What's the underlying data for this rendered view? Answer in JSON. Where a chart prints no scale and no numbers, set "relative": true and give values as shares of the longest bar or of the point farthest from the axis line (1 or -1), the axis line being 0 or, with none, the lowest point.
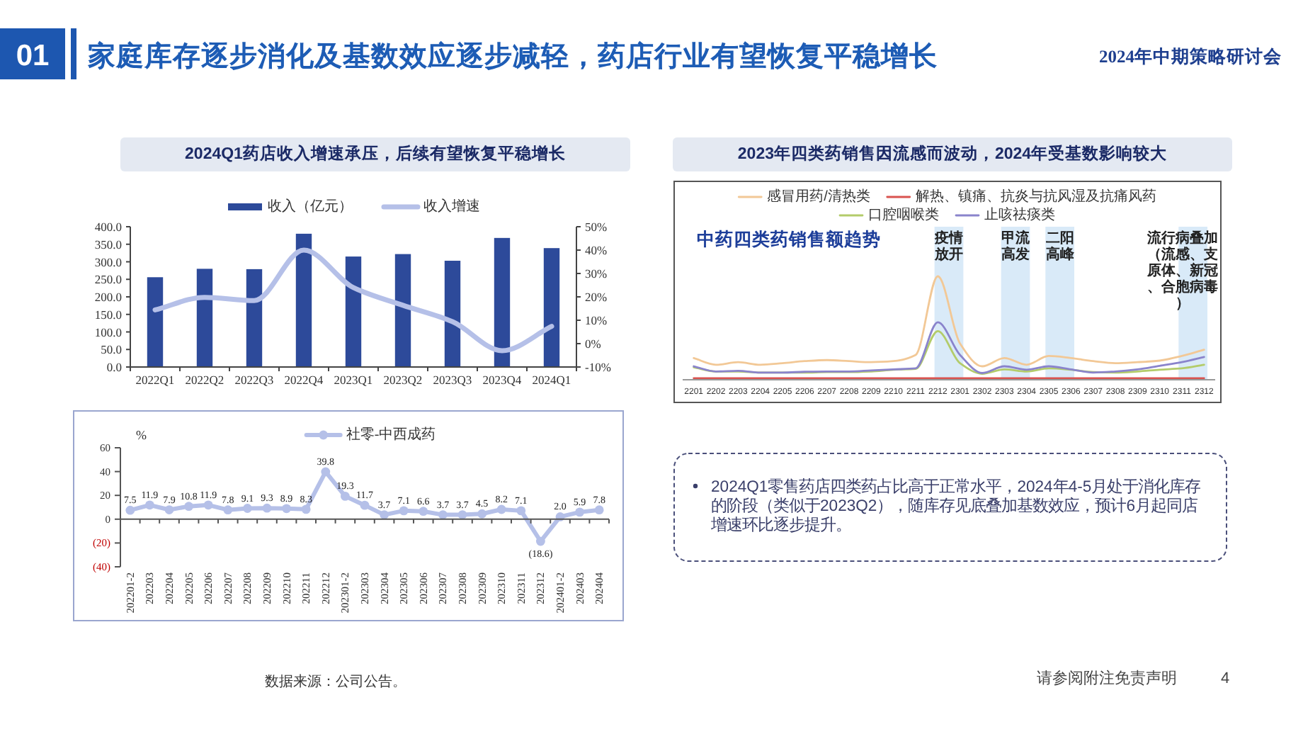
{
  "chart_data": [
    {
      "type": "other",
      "title": "家庭库存逐步消化及基数效应逐步减轻，药店行业有望恢复平稳增长",
      "annotations": [
        "01",
        "2024年中期策略研讨会",
        "数据来源：公司公告。",
        "请参阅附注免责声明",
        "4"
      ]
    },
    {
      "type": "bar",
      "title": "2024Q1药店收入增速承压，后续有望恢复平稳增长",
      "categories": [
        "2022Q1",
        "2022Q2",
        "2022Q3",
        "2022Q4",
        "2023Q1",
        "2023Q2",
        "2023Q3",
        "2023Q4",
        "2024Q1"
      ],
      "series": [
        {
          "name": "收入（亿元）",
          "color": "#2d4a9a",
          "values": [
            256,
            280,
            279,
            380,
            315,
            322,
            303,
            368,
            339
          ]
        },
        {
          "name": "收入增速",
          "type": "line",
          "axis": "y2",
          "color": "#b5c0e8",
          "values": [
            14.4,
            19.8,
            18.4,
            40,
            24,
            16.4,
            9.4,
            -3,
            7.4
          ]
        }
      ],
      "ylim": [
        0,
        400
      ],
      "yticks": [
        {
          "value": 0,
          "label": "0.0"
        },
        {
          "value": 50,
          "label": "50.0"
        },
        {
          "value": 100,
          "label": "100.0"
        },
        {
          "value": 150,
          "label": "150.0"
        },
        {
          "value": 200,
          "label": "200.0"
        },
        {
          "value": 250,
          "label": "250.0"
        },
        {
          "value": 300,
          "label": "300.0"
        },
        {
          "value": 350,
          "label": "350.0"
        },
        {
          "value": 400,
          "label": "400.0"
        }
      ],
      "y2lim": [
        -10,
        50
      ],
      "y2ticks": [
        {
          "value": -10,
          "label": "-10%"
        },
        {
          "value": 0,
          "label": "0%"
        },
        {
          "value": 10,
          "label": "10%"
        },
        {
          "value": 20,
          "label": "20%"
        },
        {
          "value": 30,
          "label": "30%"
        },
        {
          "value": 40,
          "label": "40%"
        },
        {
          "value": 50,
          "label": "50%"
        }
      ],
      "legend": "top"
    },
    {
      "type": "line",
      "title": "2023年四类药销售因流感而波动，2024年受基数影响较大",
      "subtitle": "中药四类药销售额趋势",
      "relative": true,
      "categories": [
        "2201",
        "2202",
        "2203",
        "2204",
        "2205",
        "2206",
        "2207",
        "2208",
        "2209",
        "2210",
        "2211",
        "2212",
        "2301",
        "2302",
        "2303",
        "2304",
        "2305",
        "2306",
        "2307",
        "2308",
        "2309",
        "2310",
        "2311",
        "2312"
      ],
      "series": [
        {
          "name": "感冒用药/清热类",
          "color": "#f2c896",
          "values": [
            0.21,
            0.145,
            0.17,
            0.145,
            0.16,
            0.18,
            0.19,
            0.18,
            0.17,
            0.18,
            0.24,
            1,
            0.35,
            0.13,
            0.21,
            0.145,
            0.23,
            0.21,
            0.18,
            0.16,
            0.17,
            0.185,
            0.23,
            0.29
          ]
        },
        {
          "name": "解热、镇痛、抗炎与抗风湿及抗痛风药",
          "color": "#d9534f",
          "values": [
            0.015,
            0.015,
            0.015,
            0.015,
            0.015,
            0.015,
            0.015,
            0.015,
            0.015,
            0.015,
            0.015,
            0.015,
            0.015,
            0.015,
            0.015,
            0.015,
            0.015,
            0.015,
            0.015,
            0.015,
            0.015,
            0.015,
            0.015,
            0.015
          ]
        },
        {
          "name": "口腔咽喉类",
          "color": "#b3cc6a",
          "values": [
            0.12,
            0.08,
            0.08,
            0.07,
            0.07,
            0.07,
            0.074,
            0.074,
            0.08,
            0.097,
            0.105,
            0.47,
            0.16,
            0.058,
            0.1,
            0.08,
            0.11,
            0.097,
            0.074,
            0.07,
            0.08,
            0.097,
            0.11,
            0.145
          ]
        },
        {
          "name": "止咳祛痰类",
          "color": "#8a84cc",
          "values": [
            0.13,
            0.08,
            0.087,
            0.07,
            0.07,
            0.077,
            0.08,
            0.08,
            0.09,
            0.1,
            0.11,
            0.555,
            0.24,
            0.065,
            0.13,
            0.097,
            0.13,
            0.1,
            0.07,
            0.08,
            0.1,
            0.135,
            0.17,
            0.22
          ]
        }
      ],
      "bands": [
        {
          "axis": "x",
          "from": "2212",
          "to": "2301",
          "label": "疫情放开",
          "color": "#d9eaf8"
        },
        {
          "axis": "x",
          "from": "2303",
          "to": "2304",
          "label": "甲流高发",
          "color": "#d9eaf8"
        },
        {
          "axis": "x",
          "from": "2305",
          "to": "2306",
          "label": "二阳高峰",
          "color": "#d9eaf8"
        },
        {
          "axis": "x",
          "from": "2311",
          "to": "2312",
          "label": "流行病叠加（流感、支原体、新冠、合胞病毒）",
          "color": "#d9eaf8"
        }
      ],
      "legend": "top"
    },
    {
      "type": "line",
      "categories": [
        "202201-2",
        "202203",
        "202204",
        "202205",
        "202206",
        "202207",
        "202208",
        "202209",
        "202210",
        "202211",
        "202212",
        "202301-2",
        "202303",
        "202304",
        "202305",
        "202306",
        "202307",
        "202308",
        "202309",
        "202310",
        "202311",
        "202312",
        "202401-2",
        "202403",
        "202404"
      ],
      "series": [
        {
          "name": "社零-中西成药",
          "color": "#b5c0e8",
          "values": [
            7.5,
            11.9,
            7.9,
            10.8,
            11.9,
            7.8,
            9.1,
            9.3,
            8.9,
            8.3,
            39.8,
            19.3,
            11.7,
            3.7,
            7.1,
            6.6,
            3.7,
            3.7,
            4.5,
            8.2,
            7.1,
            -18.6,
            2.0,
            5.9,
            7.8
          ],
          "value_labels": [
            "7.5",
            "11.9",
            "7.9",
            "10.8",
            "11.9",
            "7.8",
            "9.1",
            "9.3",
            "8.9",
            "8.3",
            "39.8",
            "19.3",
            "11.7",
            "3.7",
            "7.1",
            "6.6",
            "3.7",
            "3.7",
            "4.5",
            "8.2",
            "7.1",
            "(18.6)",
            "2.0",
            "5.9",
            "7.8"
          ]
        }
      ],
      "ylabel": "%",
      "ylim": [
        -40,
        60
      ],
      "yticks": [
        {
          "value": -40,
          "label": "(40)"
        },
        {
          "value": -20,
          "label": "(20)"
        },
        0,
        20,
        40,
        60
      ],
      "marker": "circle",
      "legend": "top"
    },
    {
      "type": "other",
      "annotations": [
        "2024Q1零售药店四类药占比高于正常水平，2024年4-5月处于消化库存的阶段（类似于2023Q2），随库存见底叠加基数效应，预计6月起同店增速环比逐步提升。"
      ]
    }
  ]
}
